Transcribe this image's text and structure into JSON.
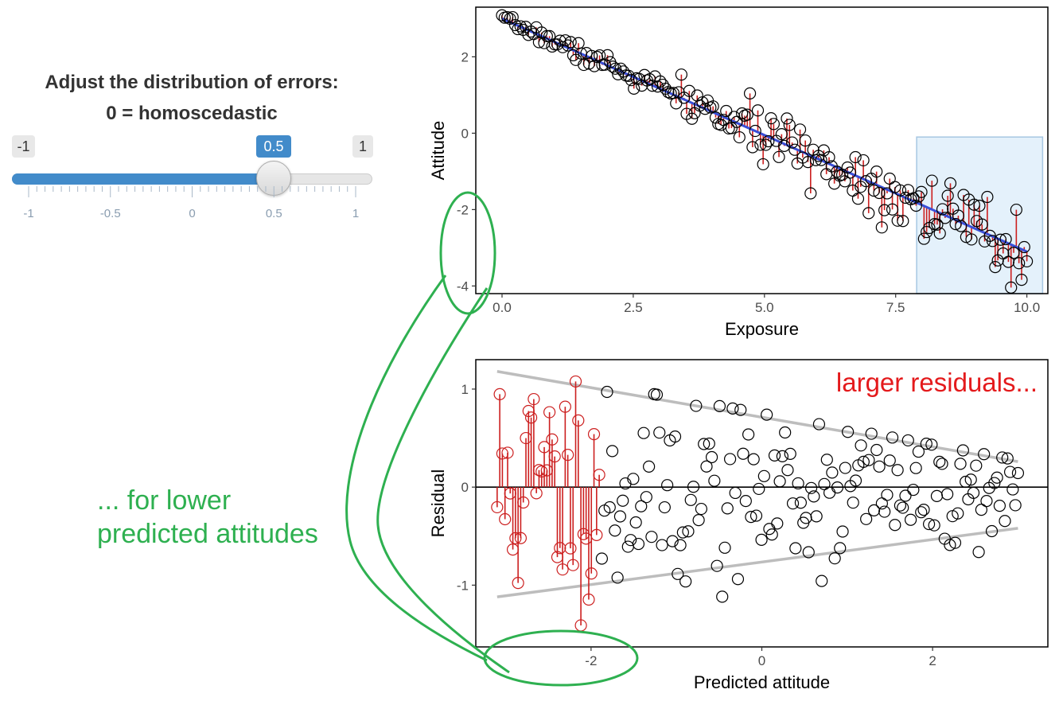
{
  "slider": {
    "title_line1": "Adjust the distribution of errors:",
    "title_line2": "0 = homoscedastic",
    "min_label": "-1",
    "max_label": "1",
    "value_label": "0.5",
    "value": 0.5,
    "min": -1,
    "max": 1,
    "major_tick_labels": [
      "-1",
      "-0.5",
      "0",
      "0.5",
      "1"
    ],
    "accent_color": "#428bca"
  },
  "annotations": {
    "right_label": "larger residuals...",
    "left_label_line1": "... for lower",
    "left_label_line2": "predicted attitudes",
    "red_color": "#e41a1c",
    "green_color": "#2eb050"
  },
  "chart_data": [
    {
      "type": "scatter",
      "xlabel": "Exposure",
      "ylabel": "Attitude",
      "xlim": [
        -0.5,
        10.4
      ],
      "ylim": [
        -4.2,
        3.3
      ],
      "x_ticks": [
        "0.0",
        "2.5",
        "5.0",
        "7.5",
        "10.0"
      ],
      "y_ticks": [
        "2",
        "0",
        "-2",
        "-4"
      ],
      "fit_line": {
        "x": [
          0,
          10
        ],
        "y": [
          3.0,
          -3.1
        ],
        "color": "#3a4fd8"
      },
      "highlight_region": {
        "x": [
          7.9,
          10.3
        ],
        "y": [
          -4.2,
          -0.1
        ]
      },
      "residual_color": "#cc1f1f",
      "seed": 7,
      "n_points": 200
    },
    {
      "type": "scatter",
      "xlabel": "Predicted attitude",
      "ylabel": "Residual",
      "xlim": [
        -3.35,
        3.35
      ],
      "ylim": [
        -1.63,
        1.3
      ],
      "x_ticks": [
        "-2",
        "0",
        "2"
      ],
      "y_ticks": [
        "1",
        "0",
        "-1"
      ],
      "envelope_upper": {
        "x": [
          -3.1,
          3.0
        ],
        "y": [
          1.18,
          0.26
        ]
      },
      "envelope_lower": {
        "x": [
          -3.1,
          3.0
        ],
        "y": [
          -1.12,
          -0.42
        ]
      },
      "highlight_threshold_x": -1.9,
      "highlight_color": "#cc1f1f",
      "seed": 11,
      "n_points": 200
    }
  ]
}
